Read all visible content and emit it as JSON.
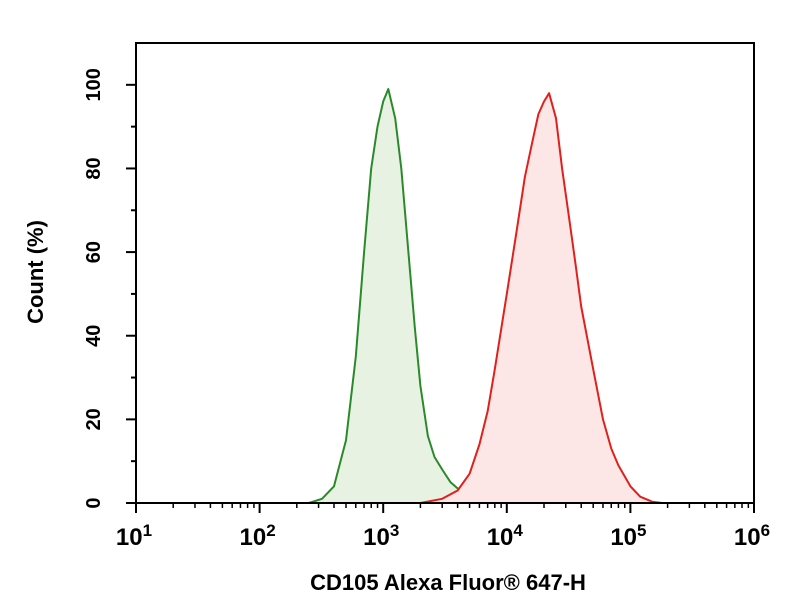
{
  "chart_data": {
    "type": "area",
    "xlabel": "CD105 Alexa Fluor® 647-H",
    "ylabel": "Count (%)",
    "xscale": "log",
    "xlim": [
      10,
      1000000
    ],
    "ylim": [
      0,
      110
    ],
    "grid": false,
    "legend": "none",
    "x_ticks": [
      {
        "value": 10,
        "base": "10",
        "exp": "1"
      },
      {
        "value": 100,
        "base": "10",
        "exp": "2"
      },
      {
        "value": 1000,
        "base": "10",
        "exp": "3"
      },
      {
        "value": 10000,
        "base": "10",
        "exp": "4"
      },
      {
        "value": 100000,
        "base": "10",
        "exp": "5"
      },
      {
        "value": 1000000,
        "base": "10",
        "exp": "6"
      }
    ],
    "y_ticks": [
      "0",
      "20",
      "40",
      "60",
      "80",
      "100"
    ],
    "series": [
      {
        "color": "#2a8a2a",
        "fill": "#e7f2e2",
        "x": [
          250,
          320,
          400,
          500,
          600,
          700,
          800,
          900,
          1000,
          1100,
          1250,
          1400,
          1600,
          1800,
          2000,
          2300,
          2600,
          3000,
          3500,
          4000,
          5000,
          6000,
          8000,
          10000,
          13000
        ],
        "y": [
          0,
          1,
          4,
          15,
          35,
          60,
          80,
          90,
          96,
          99,
          92,
          80,
          60,
          42,
          28,
          16,
          11,
          8,
          5,
          3.5,
          2,
          1,
          0.5,
          0.2,
          0
        ]
      },
      {
        "color": "#e0201c",
        "fill": "#fde6e6",
        "x": [
          2000,
          3000,
          4000,
          5000,
          6000,
          7000,
          8000,
          10000,
          12000,
          14000,
          16000,
          18000,
          20000,
          22000,
          25000,
          28000,
          32000,
          36000,
          40000,
          50000,
          60000,
          70000,
          80000,
          100000,
          120000,
          150000,
          180000
        ],
        "y": [
          0,
          1,
          3,
          7,
          14,
          22,
          32,
          50,
          65,
          78,
          86,
          93,
          96,
          98,
          92,
          80,
          68,
          57,
          47,
          32,
          20,
          13,
          9,
          4,
          1.5,
          0.3,
          0
        ]
      }
    ]
  }
}
